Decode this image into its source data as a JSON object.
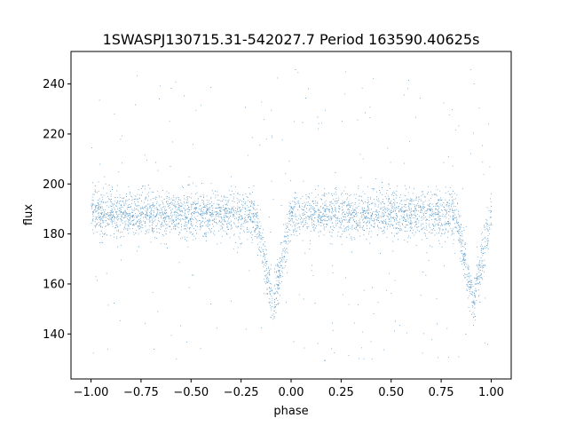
{
  "chart_data": {
    "type": "scatter",
    "title": "1SWASPJ130715.31-542027.7 Period 163590.40625s",
    "xlabel": "phase",
    "ylabel": "flux",
    "xlim": [
      -1.1,
      1.1
    ],
    "ylim": [
      122,
      253
    ],
    "x_ticks": [
      -1.0,
      -0.75,
      -0.5,
      -0.25,
      0.0,
      0.25,
      0.5,
      0.75,
      1.0
    ],
    "x_tick_labels": [
      "−1.00",
      "−0.75",
      "−0.50",
      "−0.25",
      "0.00",
      "0.25",
      "0.50",
      "0.75",
      "1.00"
    ],
    "y_ticks": [
      140,
      160,
      180,
      200,
      220,
      240
    ],
    "y_tick_labels": [
      "140",
      "160",
      "180",
      "200",
      "220",
      "240"
    ],
    "grid": false,
    "marker_color": "#1f77b4",
    "light_curve": {
      "phase_range": [
        -1.0,
        1.0
      ],
      "baseline_flux": 188,
      "scatter_sd": 4.5,
      "eclipses": [
        {
          "center_phase": -0.09,
          "min_flux": 152,
          "half_width": 0.09
        },
        {
          "center_phase": 0.91,
          "min_flux": 152,
          "half_width": 0.09
        }
      ],
      "outlier_range": [
        128,
        246
      ]
    }
  }
}
